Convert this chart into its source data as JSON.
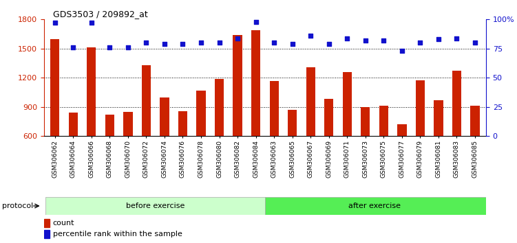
{
  "title": "GDS3503 / 209892_at",
  "categories": [
    "GSM306062",
    "GSM306064",
    "GSM306066",
    "GSM306068",
    "GSM306070",
    "GSM306072",
    "GSM306074",
    "GSM306076",
    "GSM306078",
    "GSM306080",
    "GSM306082",
    "GSM306084",
    "GSM306063",
    "GSM306065",
    "GSM306067",
    "GSM306069",
    "GSM306071",
    "GSM306073",
    "GSM306075",
    "GSM306077",
    "GSM306079",
    "GSM306081",
    "GSM306083",
    "GSM306085"
  ],
  "counts": [
    1600,
    840,
    1510,
    820,
    850,
    1330,
    1000,
    855,
    1070,
    1190,
    1640,
    1690,
    1165,
    870,
    1310,
    980,
    1260,
    900,
    910,
    720,
    1175,
    970,
    1270,
    910
  ],
  "percentile": [
    97,
    76,
    97,
    76,
    76,
    80,
    79,
    79,
    80,
    80,
    84,
    98,
    80,
    79,
    86,
    79,
    84,
    82,
    82,
    73,
    80,
    83,
    84,
    80
  ],
  "before_exercise_count": 12,
  "after_exercise_count": 12,
  "bar_color": "#cc2200",
  "dot_color": "#1111cc",
  "ylim_left": [
    600,
    1800
  ],
  "ylim_right": [
    0,
    100
  ],
  "yticks_left": [
    600,
    900,
    1200,
    1500,
    1800
  ],
  "yticks_right": [
    0,
    25,
    50,
    75,
    100
  ],
  "grid_lines": [
    900,
    1200,
    1500
  ],
  "before_color": "#ccffcc",
  "after_color": "#55ee55",
  "protocol_label": "protocol",
  "before_label": "before exercise",
  "after_label": "after exercise",
  "legend_count_label": "count",
  "legend_pct_label": "percentile rank within the sample",
  "bg_color": "#ffffff",
  "plot_bg_color": "#ffffff"
}
